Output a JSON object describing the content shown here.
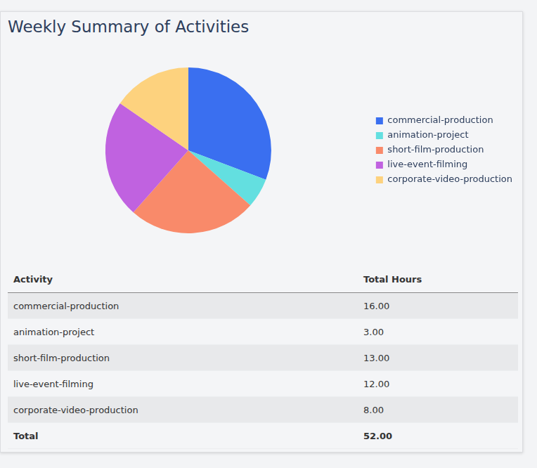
{
  "chart_data": {
    "type": "pie",
    "title": "Weekly Summary of Activities",
    "categories": [
      "commercial-production",
      "animation-project",
      "short-film-production",
      "live-event-filming",
      "corporate-video-production"
    ],
    "values": [
      16,
      3,
      13,
      12,
      8
    ],
    "colors": [
      "#3a6ff0",
      "#63dfe0",
      "#f98a6a",
      "#c062e0",
      "#fdd27e"
    ],
    "legend": "right"
  },
  "table": {
    "header": [
      "Activity",
      "Total Hours"
    ],
    "rows": [
      [
        "commercial-production",
        "16.00"
      ],
      [
        "animation-project",
        "3.00"
      ],
      [
        "short-film-production",
        "13.00"
      ],
      [
        "live-event-filming",
        "12.00"
      ],
      [
        "corporate-video-production",
        "8.00"
      ]
    ],
    "total": [
      "Total",
      "52.00"
    ]
  }
}
